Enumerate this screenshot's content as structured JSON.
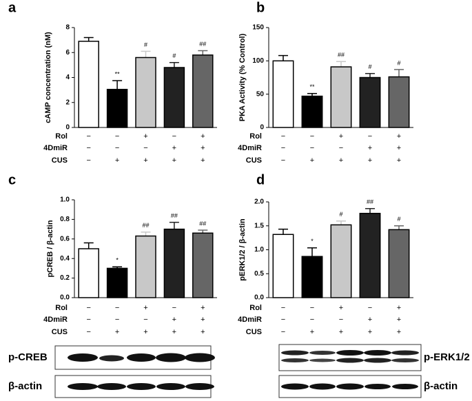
{
  "chart_data": [
    {
      "type": "bar",
      "panel": "a",
      "y_label": "cAMP concentration (nM)",
      "values": [
        6.9,
        3.05,
        5.6,
        4.8,
        5.8
      ],
      "errors": [
        0.3,
        0.7,
        0.5,
        0.4,
        0.35
      ],
      "annotations": [
        null,
        "**",
        "#",
        "#",
        "##"
      ],
      "colors": [
        "#ffffff",
        "#000000",
        "#c8c8c8",
        "#222222",
        "#666666"
      ],
      "ylim": [
        0,
        8
      ],
      "yticks": [
        0,
        2,
        4,
        6,
        8
      ],
      "treatments": [
        {
          "name": "Rol",
          "signs": [
            "−",
            "−",
            "+",
            "−",
            "+"
          ]
        },
        {
          "name": "4DmiR",
          "signs": [
            "−",
            "−",
            "−",
            "+",
            "+"
          ]
        },
        {
          "name": "CUS",
          "signs": [
            "−",
            "+",
            "+",
            "+",
            "+"
          ]
        }
      ]
    },
    {
      "type": "bar",
      "panel": "b",
      "y_label": "PKA  Activity (% Control)",
      "values": [
        100,
        47,
        91,
        75,
        76
      ],
      "errors": [
        8,
        4,
        8,
        6,
        11
      ],
      "annotations": [
        null,
        "**",
        "##",
        "#",
        "#"
      ],
      "colors": [
        "#ffffff",
        "#000000",
        "#c8c8c8",
        "#222222",
        "#666666"
      ],
      "ylim": [
        0,
        150
      ],
      "yticks": [
        0,
        50,
        100,
        150
      ],
      "treatments": [
        {
          "name": "Rol",
          "signs": [
            "−",
            "−",
            "+",
            "−",
            "+"
          ]
        },
        {
          "name": "4DmiR",
          "signs": [
            "−",
            "−",
            "−",
            "+",
            "+"
          ]
        },
        {
          "name": "CUS",
          "signs": [
            "−",
            "+",
            "+",
            "+",
            "+"
          ]
        }
      ]
    },
    {
      "type": "bar",
      "panel": "c",
      "y_label": "pCREB / β-actin",
      "values": [
        0.5,
        0.3,
        0.63,
        0.7,
        0.66
      ],
      "errors": [
        0.06,
        0.015,
        0.04,
        0.07,
        0.03
      ],
      "annotations": [
        null,
        "*",
        "##",
        "##",
        "##"
      ],
      "colors": [
        "#ffffff",
        "#000000",
        "#c8c8c8",
        "#222222",
        "#666666"
      ],
      "ylim": [
        0,
        1
      ],
      "yticks": [
        {
          "value": 0,
          "label": "0.0"
        },
        0.2,
        0.4,
        0.6,
        0.8,
        {
          "value": 1,
          "label": "1.0"
        }
      ],
      "treatments": [
        {
          "name": "Rol",
          "signs": [
            "−",
            "−",
            "+",
            "−",
            "+"
          ]
        },
        {
          "name": "4DmiR",
          "signs": [
            "−",
            "−",
            "−",
            "+",
            "+"
          ]
        },
        {
          "name": "CUS",
          "signs": [
            "−",
            "+",
            "+",
            "+",
            "+"
          ]
        }
      ]
    },
    {
      "type": "bar",
      "panel": "d",
      "y_label": "pERK1/2 / β-actin",
      "values": [
        1.32,
        0.86,
        1.52,
        1.76,
        1.42
      ],
      "errors": [
        0.11,
        0.18,
        0.08,
        0.1,
        0.08
      ],
      "annotations": [
        null,
        "*",
        "#",
        "##",
        "#"
      ],
      "colors": [
        "#ffffff",
        "#000000",
        "#c8c8c8",
        "#222222",
        "#666666"
      ],
      "ylim": [
        0,
        2
      ],
      "yticks": [
        {
          "value": 0,
          "label": "0.0"
        },
        0.5,
        {
          "value": 1,
          "label": "1.0"
        },
        1.5,
        {
          "value": 2,
          "label": "2.0"
        }
      ],
      "treatments": [
        {
          "name": "Rol",
          "signs": [
            "−",
            "−",
            "+",
            "−",
            "+"
          ]
        },
        {
          "name": "4DmiR",
          "signs": [
            "−",
            "−",
            "−",
            "+",
            "+"
          ]
        },
        {
          "name": "CUS",
          "signs": [
            "−",
            "+",
            "+",
            "+",
            "+"
          ]
        }
      ]
    }
  ],
  "blots": [
    {
      "labels": [
        "p-CREB",
        "β-actin"
      ]
    },
    {
      "labels": [
        "p-ERK1/2",
        "β-actin"
      ]
    }
  ]
}
